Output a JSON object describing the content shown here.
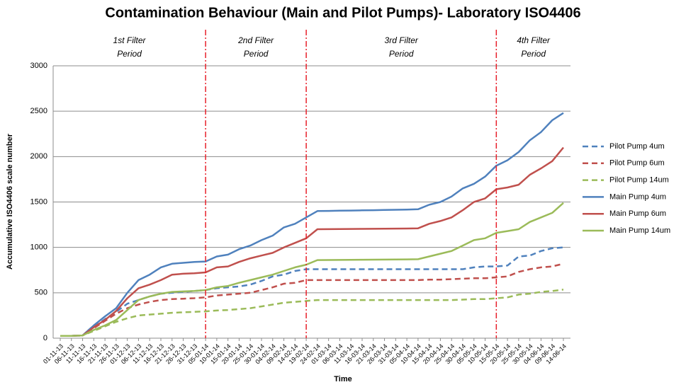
{
  "chart_data": {
    "type": "line",
    "title": "Contamination Behaviour (Main and Pilot Pumps)- Laboratory ISO4406",
    "x_label": "Time",
    "y_label": "Accumulative ISO4406 scale number",
    "categories": [
      "01-11-13",
      "06-11-13",
      "11-11-13",
      "16-11-13",
      "21-11-13",
      "26-11-13",
      "01-12-13",
      "06-12-13",
      "11-12-13",
      "16-12-13",
      "21-12-13",
      "26-12-13",
      "31-12-13",
      "05-01-14",
      "10-01-14",
      "15-01-14",
      "20-01-14",
      "25-01-14",
      "30-01-14",
      "04-02-14",
      "09-02-14",
      "14-02-14",
      "19-02-14",
      "24-02-14",
      "01-03-14",
      "06-03-14",
      "11-03-14",
      "16-03-14",
      "21-03-14",
      "26-03-14",
      "31-03-14",
      "05-04-14",
      "10-04-14",
      "15-04-14",
      "20-04-14",
      "25-04-14",
      "30-04-14",
      "05-05-14",
      "10-05-14",
      "15-05-14",
      "20-05-14",
      "25-05-14",
      "30-05-14",
      "04-06-14",
      "09-06-14",
      "14-06-14"
    ],
    "ylim": [
      0,
      3000
    ],
    "yticks": [
      0,
      500,
      1000,
      1500,
      2000,
      2500,
      3000
    ],
    "grid": true,
    "legend": "right",
    "dividers": [
      "05-01-14",
      "19-02-14",
      "15-05-14"
    ],
    "divider_color": "#e8202a",
    "periods": [
      [
        "1st Filter",
        "Period"
      ],
      [
        "2nd Filter",
        "Period"
      ],
      [
        "3rd Filter",
        "Period"
      ],
      [
        "4th Filter",
        "Period"
      ]
    ],
    "series": [
      {
        "name": "Pilot Pump 4um",
        "color": "#4f81bd",
        "dashed": true,
        "values": [
          25,
          25,
          30,
          120,
          210,
          290,
          380,
          420,
          460,
          490,
          500,
          510,
          520,
          530,
          550,
          560,
          570,
          590,
          630,
          680,
          700,
          740,
          760,
          760,
          760,
          760,
          760,
          760,
          760,
          760,
          760,
          760,
          760,
          760,
          760,
          760,
          760,
          780,
          790,
          790,
          800,
          900,
          910,
          960,
          990,
          1000
        ]
      },
      {
        "name": "Pilot Pump 6um",
        "color": "#c0504d",
        "dashed": true,
        "values": [
          25,
          25,
          30,
          110,
          190,
          270,
          330,
          370,
          400,
          420,
          430,
          435,
          440,
          450,
          470,
          480,
          490,
          500,
          530,
          560,
          600,
          610,
          640,
          640,
          640,
          640,
          640,
          640,
          640,
          640,
          640,
          640,
          640,
          645,
          645,
          650,
          655,
          660,
          660,
          670,
          680,
          730,
          760,
          780,
          790,
          820
        ]
      },
      {
        "name": "Pilot Pump 14um",
        "color": "#9bbb59",
        "dashed": true,
        "values": [
          25,
          25,
          30,
          80,
          130,
          180,
          220,
          250,
          260,
          270,
          280,
          285,
          290,
          295,
          305,
          310,
          320,
          330,
          350,
          370,
          390,
          400,
          410,
          420,
          420,
          420,
          420,
          420,
          420,
          420,
          420,
          420,
          420,
          420,
          420,
          420,
          425,
          430,
          430,
          440,
          450,
          480,
          490,
          510,
          520,
          535
        ]
      },
      {
        "name": "Main Pump 4um",
        "color": "#4f81bd",
        "dashed": false,
        "values": [
          25,
          25,
          30,
          140,
          240,
          330,
          500,
          640,
          700,
          780,
          820,
          830,
          840,
          845,
          900,
          920,
          980,
          1020,
          1080,
          1130,
          1220,
          1260,
          1330,
          1400,
          1402,
          1404,
          1406,
          1408,
          1410,
          1412,
          1414,
          1416,
          1420,
          1470,
          1500,
          1560,
          1650,
          1700,
          1780,
          1900,
          1960,
          2050,
          2180,
          2270,
          2400,
          2480
        ]
      },
      {
        "name": "Main Pump 6um",
        "color": "#c0504d",
        "dashed": false,
        "values": [
          25,
          25,
          30,
          120,
          200,
          300,
          440,
          550,
          590,
          640,
          700,
          710,
          715,
          725,
          780,
          790,
          840,
          880,
          910,
          940,
          1000,
          1050,
          1100,
          1200,
          1201,
          1202,
          1203,
          1204,
          1205,
          1206,
          1207,
          1208,
          1210,
          1260,
          1290,
          1330,
          1410,
          1500,
          1540,
          1640,
          1660,
          1690,
          1800,
          1870,
          1950,
          2100
        ]
      },
      {
        "name": "Main Pump 14um",
        "color": "#9bbb59",
        "dashed": false,
        "values": [
          25,
          25,
          30,
          90,
          140,
          200,
          310,
          420,
          460,
          490,
          510,
          515,
          520,
          530,
          560,
          575,
          610,
          640,
          670,
          700,
          740,
          780,
          810,
          860,
          861,
          862,
          863,
          864,
          865,
          866,
          867,
          868,
          870,
          900,
          930,
          960,
          1020,
          1080,
          1100,
          1160,
          1180,
          1200,
          1280,
          1330,
          1380,
          1490
        ]
      }
    ]
  }
}
